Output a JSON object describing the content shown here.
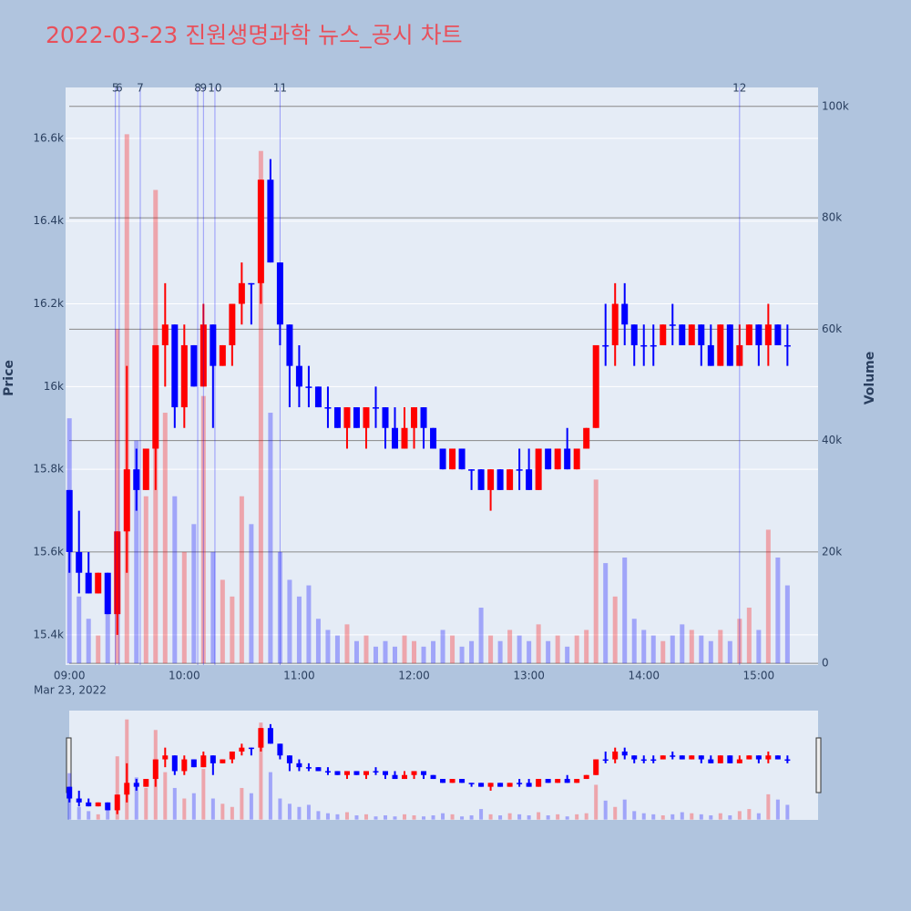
{
  "chart_data": {
    "type": "candlestick",
    "title": "2022-03-23 진원생명과학 뉴스_공시 차트",
    "y_label": "Price",
    "y2_label": "Volume",
    "x_date_label": "Mar 23, 2022",
    "increasing_color": "#ff0000",
    "decreasing_color": "#0000ff",
    "x": [
      "09:00",
      "09:05",
      "09:10",
      "09:15",
      "09:20",
      "09:25",
      "09:30",
      "09:35",
      "09:40",
      "09:45",
      "09:50",
      "09:55",
      "10:00",
      "10:05",
      "10:10",
      "10:15",
      "10:20",
      "10:25",
      "10:30",
      "10:35",
      "10:40",
      "10:45",
      "10:50",
      "10:55",
      "11:00",
      "11:05",
      "11:10",
      "11:15",
      "11:20",
      "11:25",
      "11:30",
      "11:35",
      "11:40",
      "11:45",
      "11:50",
      "11:55",
      "12:00",
      "12:05",
      "12:10",
      "12:15",
      "12:20",
      "12:25",
      "12:30",
      "12:35",
      "12:40",
      "12:45",
      "12:50",
      "12:55",
      "13:00",
      "13:05",
      "13:10",
      "13:15",
      "13:20",
      "13:25",
      "13:30",
      "13:35",
      "13:40",
      "13:45",
      "13:50",
      "13:55",
      "14:00",
      "14:05",
      "14:10",
      "14:15",
      "14:20",
      "14:25",
      "14:30",
      "14:35",
      "14:40",
      "14:45",
      "14:50",
      "14:55",
      "15:00",
      "15:05",
      "15:10",
      "15:15"
    ],
    "open": [
      15750,
      15600,
      15550,
      15500,
      15550,
      15450,
      15650,
      15800,
      15750,
      15850,
      16100,
      16150,
      15950,
      16100,
      16000,
      16150,
      16050,
      16100,
      16200,
      16250,
      16250,
      16500,
      16300,
      16150,
      16050,
      16000,
      16000,
      15950,
      15950,
      15900,
      15950,
      15900,
      15950,
      15950,
      15900,
      15850,
      15900,
      15950,
      15900,
      15850,
      15800,
      15850,
      15800,
      15800,
      15750,
      15800,
      15750,
      15800,
      15800,
      15750,
      15850,
      15800,
      15850,
      15800,
      15850,
      15900,
      16100,
      16100,
      16200,
      16150,
      16100,
      16100,
      16100,
      16150,
      16150,
      16100,
      16150,
      16100,
      16050,
      16150,
      16050,
      16100,
      16150,
      16100,
      16150,
      16100
    ],
    "high": [
      15750,
      15700,
      15600,
      15550,
      15550,
      15650,
      16050,
      15850,
      15850,
      16100,
      16250,
      16150,
      16150,
      16100,
      16200,
      16150,
      16100,
      16200,
      16300,
      16250,
      16500,
      16550,
      16300,
      16150,
      16100,
      16050,
      16000,
      16000,
      15950,
      15950,
      15950,
      15950,
      16000,
      15950,
      15950,
      15950,
      15950,
      15950,
      15900,
      15850,
      15850,
      15850,
      15800,
      15800,
      15800,
      15800,
      15800,
      15850,
      15850,
      15850,
      15850,
      15850,
      15900,
      15850,
      15900,
      16100,
      16200,
      16250,
      16250,
      16150,
      16150,
      16150,
      16150,
      16200,
      16150,
      16150,
      16150,
      16150,
      16150,
      16150,
      16150,
      16150,
      16150,
      16200,
      16150,
      16150
    ],
    "low": [
      15550,
      15500,
      15500,
      15500,
      15450,
      15400,
      15550,
      15700,
      15750,
      15750,
      16000,
      15900,
      15900,
      16000,
      16000,
      15900,
      16050,
      16050,
      16150,
      16150,
      16200,
      16300,
      16100,
      15950,
      15950,
      15950,
      15950,
      15900,
      15900,
      15850,
      15900,
      15850,
      15900,
      15850,
      15850,
      15850,
      15850,
      15850,
      15850,
      15800,
      15800,
      15800,
      15750,
      15750,
      15700,
      15750,
      15750,
      15750,
      15750,
      15750,
      15800,
      15800,
      15800,
      15800,
      15850,
      15900,
      16050,
      16050,
      16100,
      16050,
      16050,
      16050,
      16100,
      16100,
      16100,
      16100,
      16050,
      16050,
      16050,
      16050,
      16050,
      16100,
      16050,
      16050,
      16100,
      16050
    ],
    "close": [
      15600,
      15550,
      15500,
      15550,
      15450,
      15650,
      15800,
      15750,
      15850,
      16100,
      16150,
      15950,
      16100,
      16000,
      16150,
      16050,
      16100,
      16200,
      16250,
      16250,
      16500,
      16300,
      16150,
      16050,
      16000,
      16000,
      15950,
      15950,
      15900,
      15950,
      15900,
      15950,
      15950,
      15900,
      15850,
      15900,
      15950,
      15900,
      15850,
      15800,
      15850,
      15800,
      15800,
      15750,
      15800,
      15750,
      15800,
      15800,
      15750,
      15850,
      15800,
      15850,
      15800,
      15850,
      15900,
      16100,
      16100,
      16200,
      16150,
      16100,
      16100,
      16100,
      16150,
      16150,
      16100,
      16150,
      16100,
      16050,
      16150,
      16050,
      16100,
      16150,
      16100,
      16150,
      16100,
      16100
    ],
    "volume": [
      44000,
      12000,
      8000,
      5000,
      9000,
      60000,
      95000,
      40000,
      30000,
      85000,
      45000,
      30000,
      20000,
      25000,
      48000,
      20000,
      15000,
      12000,
      30000,
      25000,
      92000,
      45000,
      20000,
      15000,
      12000,
      14000,
      8000,
      6000,
      5000,
      7000,
      4000,
      5000,
      3000,
      4000,
      3000,
      5000,
      4000,
      3000,
      4000,
      6000,
      5000,
      3000,
      4000,
      10000,
      5000,
      4000,
      6000,
      5000,
      4000,
      7000,
      4000,
      5000,
      3000,
      5000,
      6000,
      33000,
      18000,
      12000,
      19000,
      8000,
      6000,
      5000,
      4000,
      5000,
      7000,
      6000,
      5000,
      4000,
      6000,
      4000,
      8000,
      10000,
      6000,
      24000,
      19000,
      14000
    ],
    "annotations": [
      {
        "x": "09:24",
        "label": "5"
      },
      {
        "x": "09:26",
        "label": "6"
      },
      {
        "x": "09:37",
        "label": "7"
      },
      {
        "x": "10:07",
        "label": "8"
      },
      {
        "x": "10:10",
        "label": "9"
      },
      {
        "x": "10:16",
        "label": "10"
      },
      {
        "x": "10:50",
        "label": "11"
      },
      {
        "x": "14:50",
        "label": "12"
      }
    ],
    "xlim": [
      "08:58",
      "15:31"
    ],
    "xticks": [
      "09:00",
      "10:00",
      "11:00",
      "12:00",
      "13:00",
      "14:00",
      "15:00"
    ],
    "ylim": [
      15327,
      16723
    ],
    "yticks": [
      {
        "value": 15400,
        "label": "15.4k"
      },
      {
        "value": 15600,
        "label": "15.6k"
      },
      {
        "value": 15800,
        "label": "15.8k"
      },
      {
        "value": 16000,
        "label": "16k"
      },
      {
        "value": 16200,
        "label": "16.2k"
      },
      {
        "value": 16400,
        "label": "16.4k"
      },
      {
        "value": 16600,
        "label": "16.6k"
      }
    ],
    "y2lim": [
      -300,
      103400
    ],
    "y2ticks": [
      0,
      {
        "value": 20000,
        "label": "20k"
      },
      {
        "value": 40000,
        "label": "40k"
      },
      {
        "value": 60000,
        "label": "60k"
      },
      {
        "value": 80000,
        "label": "80k"
      },
      {
        "value": 100000,
        "label": "100k"
      }
    ],
    "grid": true,
    "range_slider": true
  }
}
